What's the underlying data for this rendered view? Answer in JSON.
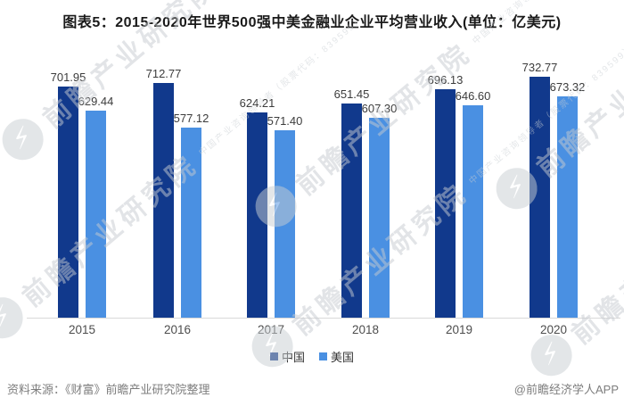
{
  "title": "图表5：2015-2020年世界500强中美金融业企业平均营业收入(单位：亿美元)",
  "chart_data": {
    "type": "bar",
    "title": "图表5：2015-2020年世界500强中美金融业企业平均营业收入(单位：亿美元)",
    "unit": "亿美元",
    "categories": [
      "2015",
      "2016",
      "2017",
      "2018",
      "2019",
      "2020"
    ],
    "series": [
      {
        "name": "中国",
        "color": "#11398C",
        "values": [
          701.95,
          712.77,
          624.21,
          651.45,
          696.13,
          732.77
        ]
      },
      {
        "name": "美国",
        "color": "#4A90E2",
        "values": [
          629.44,
          577.12,
          571.4,
          607.3,
          646.6,
          673.32
        ]
      }
    ],
    "ylim": [
      0,
      732.77
    ],
    "grid": false,
    "y_axis_visible": false,
    "value_labels": true,
    "value_label_decimals": 2,
    "legend_position": "bottom",
    "axis_line_color": "#d9d9d9"
  },
  "footer": {
    "source": "资料来源：《财富》前瞻产业研究院整理",
    "credit": "@前瞻经济学人APP"
  },
  "watermark": {
    "large": "前瞻产业研究院",
    "small": "中国产业咨询领导者（股票代码：839599）"
  },
  "colors": {
    "china_bar": "#11398C",
    "usa_bar": "#4A90E2",
    "axis_line": "#d9d9d9",
    "watermark_gray": "#c9ced3"
  }
}
